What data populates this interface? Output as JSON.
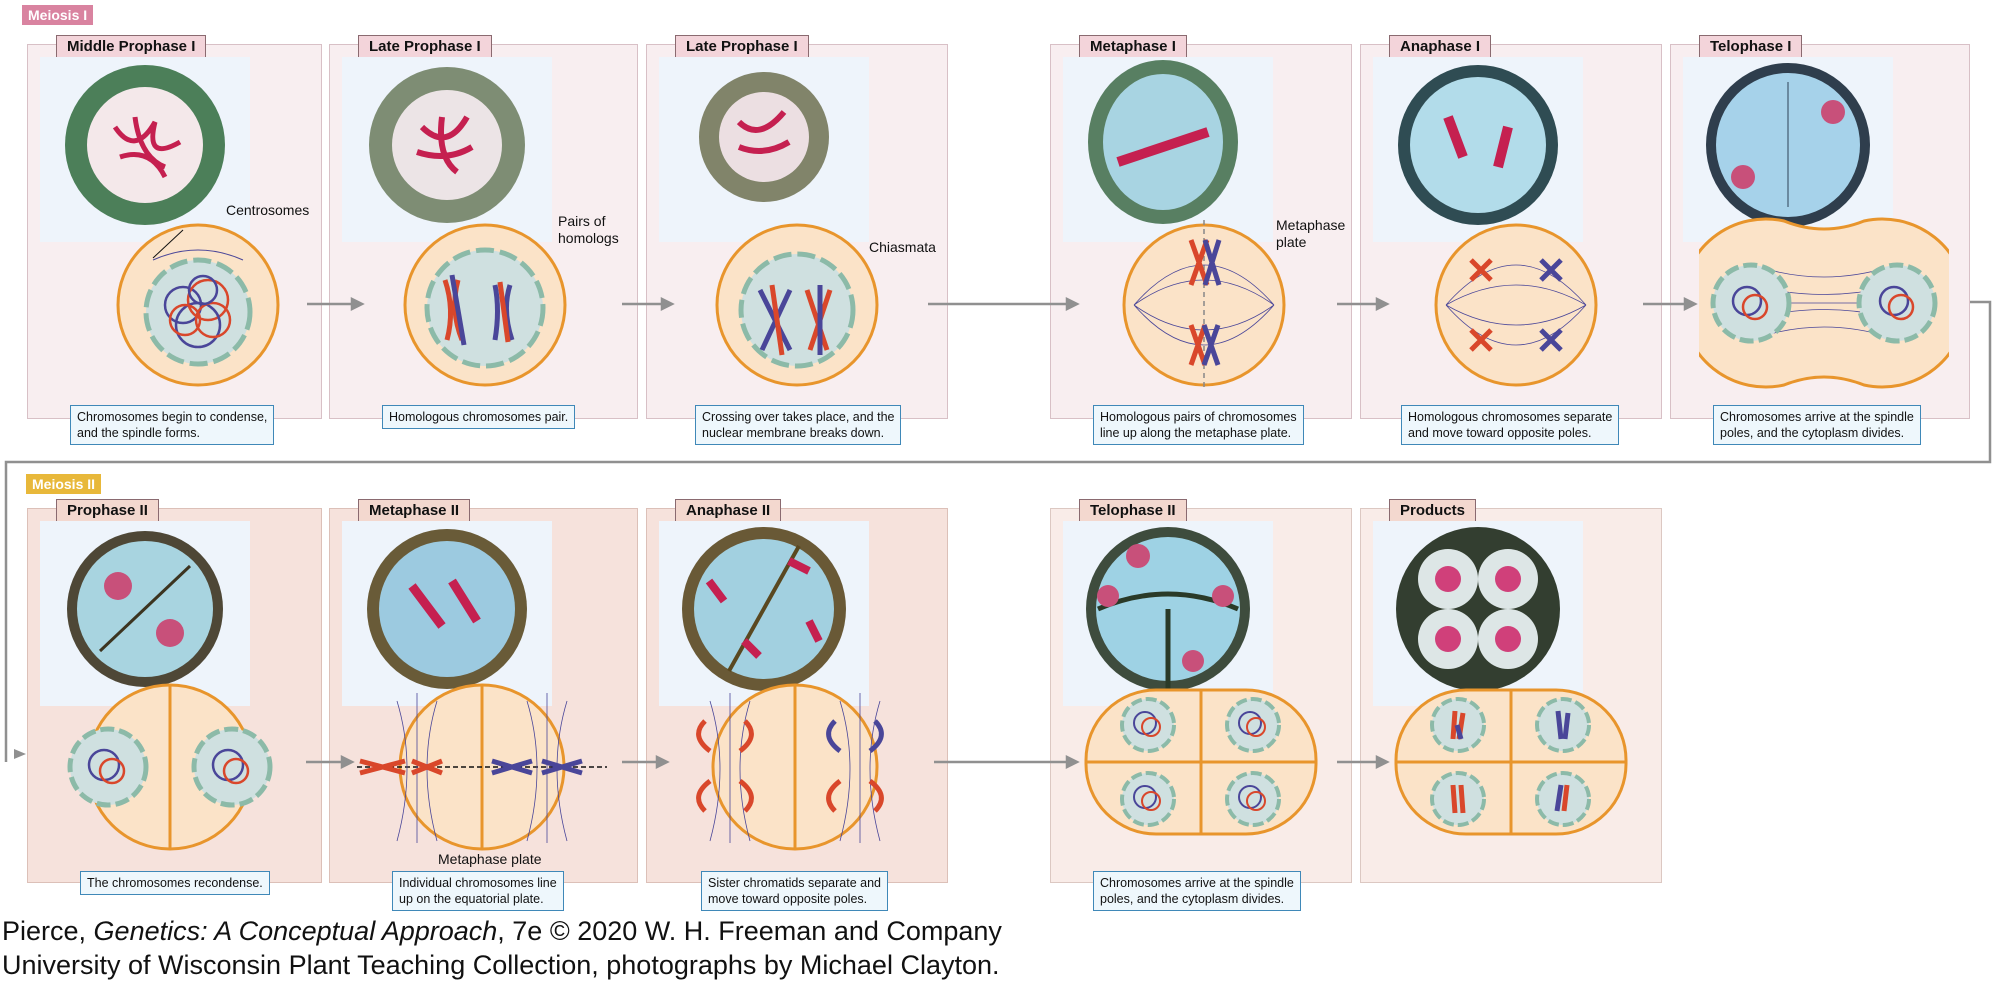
{
  "sections": {
    "meiosis1": "Meiosis I",
    "meiosis2": "Meiosis II"
  },
  "stages": [
    {
      "label": "Middle Prophase I",
      "caption1": "Chromosomes begin to condense,",
      "caption2": "and the spindle forms."
    },
    {
      "label": "Late Prophase I",
      "caption1": "Homologous chromosomes pair.",
      "caption2": ""
    },
    {
      "label": "Late Prophase I",
      "caption1": "Crossing over takes place, and the",
      "caption2": "nuclear membrane breaks down."
    },
    {
      "label": "Metaphase I",
      "caption1": "Homologous pairs of chromosomes",
      "caption2": "line up along the metaphase plate."
    },
    {
      "label": "Anaphase I",
      "caption1": "Homologous chromosomes separate",
      "caption2": "and move toward opposite poles."
    },
    {
      "label": "Telophase I",
      "caption1": "Chromosomes arrive at the spindle",
      "caption2": "poles, and the cytoplasm divides."
    },
    {
      "label": "Prophase II",
      "caption1": "The chromosomes recondense.",
      "caption2": ""
    },
    {
      "label": "Metaphase II",
      "caption1": "Individual chromosomes line",
      "caption2": "up on the equatorial plate."
    },
    {
      "label": "Anaphase II",
      "caption1": "Sister chromatids separate and",
      "caption2": "move toward opposite poles."
    },
    {
      "label": "Telophase II",
      "caption1": "Chromosomes arrive at the spindle",
      "caption2": "poles, and the cytoplasm divides."
    },
    {
      "label": "Products",
      "caption1": "",
      "caption2": ""
    }
  ],
  "callouts": {
    "centrosomes": "Centrosomes",
    "pairs1": "Pairs of",
    "pairs2": "homologs",
    "chiasmata": "Chiasmata",
    "metaplate1": "Metaphase",
    "metaplate2": "plate",
    "metaplate_m2": "Metaphase plate"
  },
  "credits": {
    "author": "Pierce, ",
    "book_title": "Genetics: A Conceptual Approach",
    "publisher": ", 7e © 2020 W. H. Freeman and Company",
    "photo_credit": "University of Wisconsin Plant Teaching Collection, photographs by Michael Clayton."
  },
  "colors": {
    "cell_fill": "#fbe3c8",
    "cell_border": "#e8952c",
    "maternal": "#d9472b",
    "paternal": "#4a4699",
    "nucleus": "#cfe0e0",
    "nuclear_membrane": "#8cbaa8",
    "arrow": "#909090"
  }
}
